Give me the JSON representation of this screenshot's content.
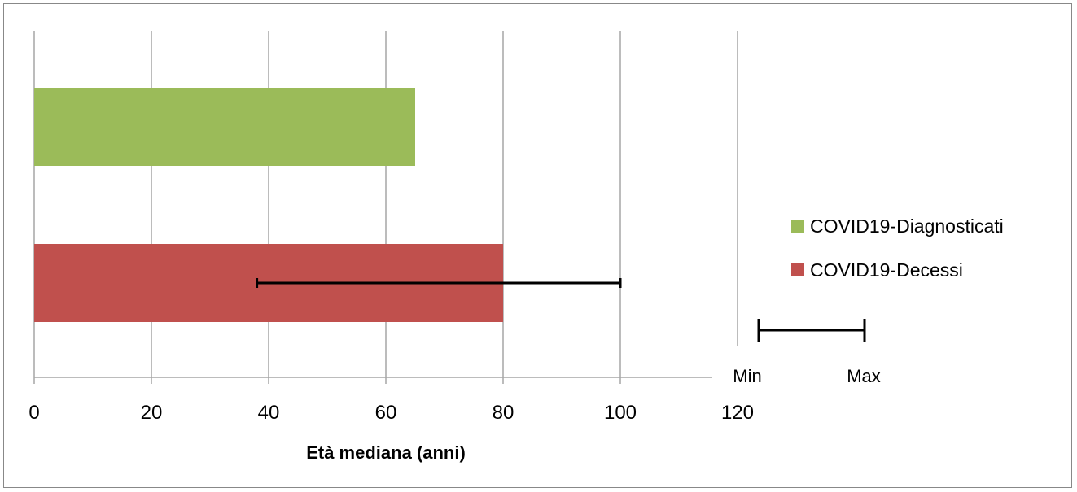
{
  "chart_data": {
    "type": "bar",
    "orientation": "horizontal",
    "xlabel": "Età mediana (anni)",
    "xlim": [
      0,
      120
    ],
    "xticks": [
      "0",
      "20",
      "40",
      "60",
      "80",
      "100",
      "120"
    ],
    "grid": true,
    "legend_position": "right",
    "series": [
      {
        "name": "COVID19-Diagnosticati",
        "value": 65,
        "color": "#9BBB59"
      },
      {
        "name": "COVID19-Decessi",
        "value": 80,
        "color": "#C0504D",
        "error_range": [
          38,
          100
        ]
      }
    ],
    "range_key": {
      "min_label": "Min",
      "max_label": "Max"
    }
  }
}
